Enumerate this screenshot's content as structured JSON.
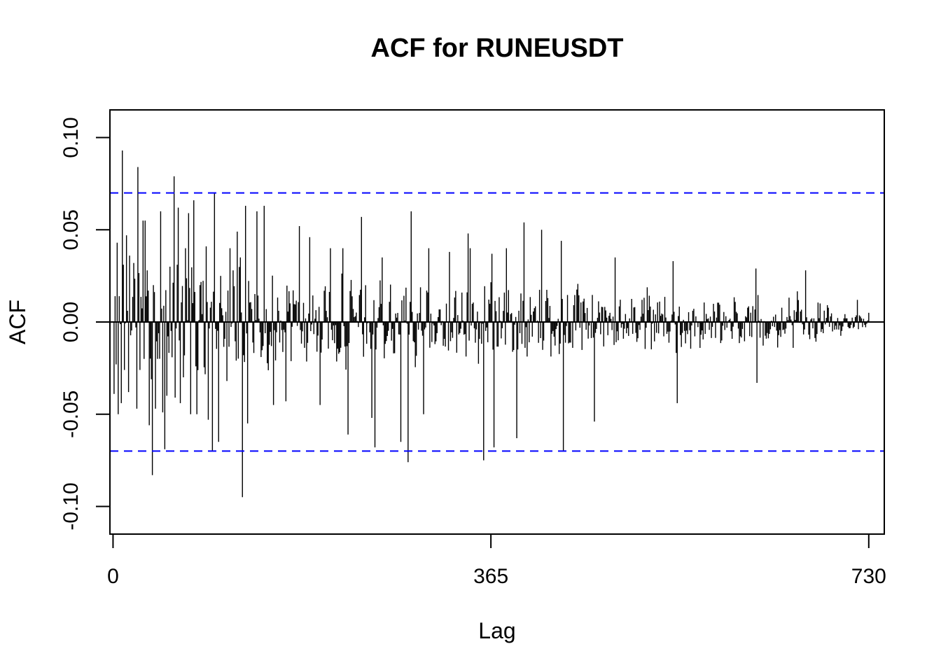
{
  "chart_data": {
    "type": "bar",
    "title": "ACF for RUNEUSDT",
    "xlabel": "Lag",
    "ylabel": "ACF",
    "xlim": [
      -3,
      745
    ],
    "ylim": [
      -0.115,
      0.115
    ],
    "x_ticks": [
      0,
      365,
      730
    ],
    "x_tick_labels": [
      "0",
      "365",
      "730"
    ],
    "y_ticks": [
      -0.1,
      -0.05,
      0.0,
      0.05,
      0.1
    ],
    "y_tick_labels": [
      "-0.10",
      "-0.05",
      "0.00",
      "0.05",
      "0.10"
    ],
    "confidence_bounds": [
      0.07,
      -0.07
    ],
    "bound_color": "#0000FF",
    "bar_color": "#000000",
    "grid": false,
    "lag_max": 730,
    "notable_lags": [
      {
        "lag": 1,
        "acf": -0.039
      },
      {
        "lag": 2,
        "acf": 0.014
      },
      {
        "lag": 3,
        "acf": -0.023
      },
      {
        "lag": 4,
        "acf": 0.043
      },
      {
        "lag": 5,
        "acf": -0.05
      },
      {
        "lag": 6,
        "acf": 0.014
      },
      {
        "lag": 8,
        "acf": -0.044
      },
      {
        "lag": 9,
        "acf": 0.093
      },
      {
        "lag": 11,
        "acf": -0.026
      },
      {
        "lag": 13,
        "acf": 0.047
      },
      {
        "lag": 15,
        "acf": -0.038
      },
      {
        "lag": 16,
        "acf": 0.036
      },
      {
        "lag": 20,
        "acf": 0.032
      },
      {
        "lag": 23,
        "acf": -0.047
      },
      {
        "lag": 24,
        "acf": 0.084
      },
      {
        "lag": 26,
        "acf": -0.026
      },
      {
        "lag": 29,
        "acf": 0.055
      },
      {
        "lag": 30,
        "acf": -0.02
      },
      {
        "lag": 31,
        "acf": 0.055
      },
      {
        "lag": 33,
        "acf": 0.028
      },
      {
        "lag": 35,
        "acf": -0.056
      },
      {
        "lag": 38,
        "acf": -0.083
      },
      {
        "lag": 39,
        "acf": 0.02
      },
      {
        "lag": 41,
        "acf": -0.047
      },
      {
        "lag": 43,
        "acf": -0.02
      },
      {
        "lag": 46,
        "acf": 0.06
      },
      {
        "lag": 48,
        "acf": -0.049
      },
      {
        "lag": 50,
        "acf": -0.069
      },
      {
        "lag": 52,
        "acf": -0.04
      },
      {
        "lag": 55,
        "acf": 0.03
      },
      {
        "lag": 59,
        "acf": 0.079
      },
      {
        "lag": 60,
        "acf": -0.041
      },
      {
        "lag": 63,
        "acf": 0.062
      },
      {
        "lag": 65,
        "acf": -0.044
      },
      {
        "lag": 68,
        "acf": -0.03
      },
      {
        "lag": 70,
        "acf": 0.04
      },
      {
        "lag": 73,
        "acf": 0.059
      },
      {
        "lag": 75,
        "acf": -0.05
      },
      {
        "lag": 78,
        "acf": 0.066
      },
      {
        "lag": 81,
        "acf": -0.05
      },
      {
        "lag": 84,
        "acf": 0.02
      },
      {
        "lag": 90,
        "acf": 0.041
      },
      {
        "lag": 92,
        "acf": -0.053
      },
      {
        "lag": 96,
        "acf": -0.07
      },
      {
        "lag": 98,
        "acf": 0.07
      },
      {
        "lag": 102,
        "acf": -0.065
      },
      {
        "lag": 104,
        "acf": 0.025
      },
      {
        "lag": 110,
        "acf": -0.032
      },
      {
        "lag": 113,
        "acf": 0.04
      },
      {
        "lag": 116,
        "acf": 0.028
      },
      {
        "lag": 120,
        "acf": 0.049
      },
      {
        "lag": 123,
        "acf": 0.035
      },
      {
        "lag": 125,
        "acf": -0.095
      },
      {
        "lag": 128,
        "acf": 0.063
      },
      {
        "lag": 130,
        "acf": -0.055
      },
      {
        "lag": 139,
        "acf": 0.06
      },
      {
        "lag": 146,
        "acf": 0.063
      },
      {
        "lag": 155,
        "acf": -0.045
      },
      {
        "lag": 167,
        "acf": -0.043
      },
      {
        "lag": 180,
        "acf": 0.052
      },
      {
        "lag": 190,
        "acf": 0.046
      },
      {
        "lag": 200,
        "acf": -0.045
      },
      {
        "lag": 210,
        "acf": 0.04
      },
      {
        "lag": 222,
        "acf": 0.04
      },
      {
        "lag": 227,
        "acf": -0.061
      },
      {
        "lag": 240,
        "acf": 0.057
      },
      {
        "lag": 250,
        "acf": -0.052
      },
      {
        "lag": 253,
        "acf": -0.068
      },
      {
        "lag": 260,
        "acf": 0.035
      },
      {
        "lag": 278,
        "acf": -0.065
      },
      {
        "lag": 285,
        "acf": -0.076
      },
      {
        "lag": 288,
        "acf": 0.06
      },
      {
        "lag": 300,
        "acf": -0.05
      },
      {
        "lag": 305,
        "acf": 0.04
      },
      {
        "lag": 325,
        "acf": 0.038
      },
      {
        "lag": 343,
        "acf": 0.048
      },
      {
        "lag": 345,
        "acf": 0.04
      },
      {
        "lag": 358,
        "acf": -0.075
      },
      {
        "lag": 366,
        "acf": 0.037
      },
      {
        "lag": 368,
        "acf": -0.068
      },
      {
        "lag": 380,
        "acf": 0.04
      },
      {
        "lag": 390,
        "acf": -0.063
      },
      {
        "lag": 397,
        "acf": 0.054
      },
      {
        "lag": 414,
        "acf": 0.05
      },
      {
        "lag": 433,
        "acf": 0.044
      },
      {
        "lag": 435,
        "acf": -0.07
      },
      {
        "lag": 465,
        "acf": -0.054
      },
      {
        "lag": 485,
        "acf": 0.035
      },
      {
        "lag": 541,
        "acf": 0.033
      },
      {
        "lag": 545,
        "acf": -0.044
      },
      {
        "lag": 621,
        "acf": 0.029
      },
      {
        "lag": 622,
        "acf": -0.033
      },
      {
        "lag": 669,
        "acf": 0.028
      },
      {
        "lag": 719,
        "acf": 0.012
      },
      {
        "lag": 730,
        "acf": 0.005
      }
    ]
  }
}
